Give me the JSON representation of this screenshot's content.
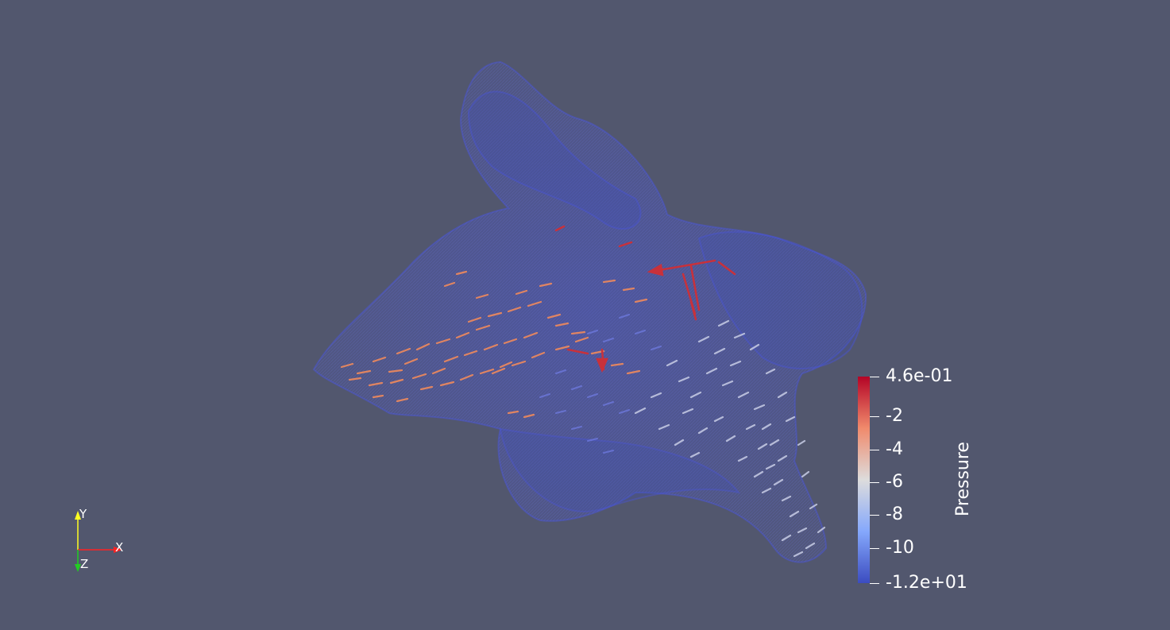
{
  "scalar_bar": {
    "title": "Pressure",
    "labels": [
      "4.6e-01",
      "-2",
      "-4",
      "-6",
      "-8",
      "-10",
      "-1.2e+01"
    ],
    "colors": {
      "top": "#b40426",
      "upper": "#f08a6c",
      "mid": "#dddcdc",
      "lower": "#85a8fc",
      "bottom": "#3b4cc0"
    }
  },
  "orientation_axes": {
    "x_label": "X",
    "y_label": "Y",
    "z_label": "Z",
    "x_color": "#ff2222",
    "y_color": "#ffff22",
    "z_color": "#22cc22"
  },
  "mesh_color": "#3b4cc0",
  "background": "#52576e"
}
